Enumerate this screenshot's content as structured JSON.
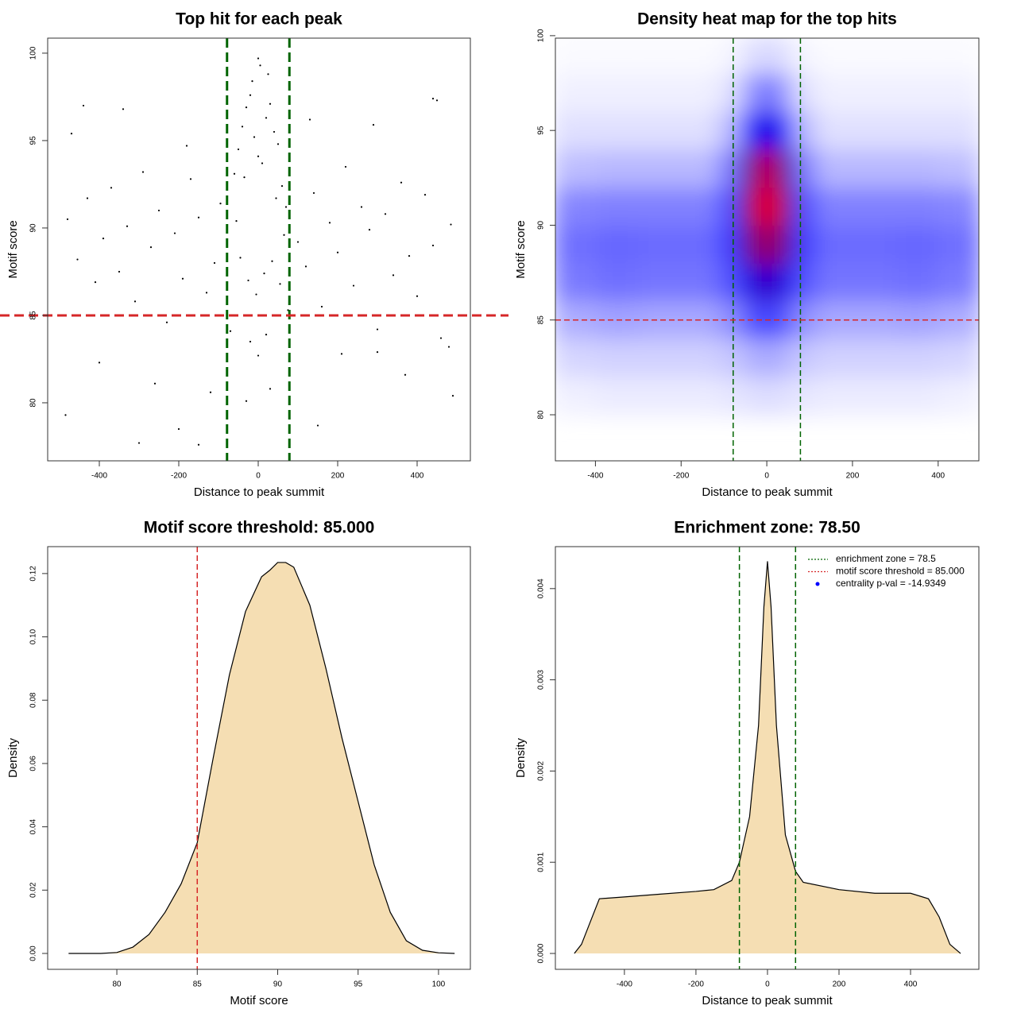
{
  "chart_data": [
    {
      "type": "scatter",
      "title": "Top hit for each peak",
      "x_label": "Distance to peak summit",
      "y_label": "Motif score",
      "xlim": [
        -530,
        534
      ],
      "ylim": [
        76.68,
        100.86
      ],
      "xticks": [
        -400,
        -200,
        0,
        200,
        400
      ],
      "yticks": [
        80,
        85,
        90,
        95,
        100
      ],
      "color": "#000000",
      "x": [
        -480,
        -455,
        -430,
        -410,
        -390,
        -370,
        -350,
        -330,
        -310,
        -290,
        -270,
        -250,
        -230,
        -210,
        -190,
        -170,
        -150,
        -130,
        -110,
        -95,
        100,
        120,
        140,
        160,
        180,
        200,
        220,
        240,
        260,
        280,
        300,
        320,
        340,
        360,
        380,
        400,
        420,
        440,
        460,
        485,
        -470,
        -400,
        -340,
        -260,
        -180,
        -120,
        130,
        210,
        290,
        370,
        450,
        480,
        -60,
        -50,
        -40,
        -30,
        -20,
        -10,
        0,
        10,
        20,
        30,
        40,
        50,
        60,
        70,
        -55,
        -35,
        -15,
        5,
        25,
        45,
        65,
        -45,
        -25,
        -5,
        15,
        35,
        55,
        -70,
        -20,
        0,
        20,
        75,
        -485,
        -300,
        -200,
        300,
        490,
        -440,
        -150,
        150,
        440,
        0,
        -30,
        30
      ],
      "y": [
        90.5,
        88.2,
        91.7,
        86.9,
        89.4,
        92.3,
        87.5,
        90.1,
        85.8,
        93.2,
        88.9,
        91.0,
        84.6,
        89.7,
        87.1,
        92.8,
        90.6,
        86.3,
        88.0,
        91.4,
        89.2,
        87.8,
        92.0,
        85.5,
        90.3,
        88.6,
        93.5,
        86.7,
        91.2,
        89.9,
        84.2,
        90.8,
        87.3,
        92.6,
        88.4,
        86.1,
        91.9,
        89.0,
        83.7,
        90.2,
        95.4,
        82.3,
        96.8,
        81.1,
        94.7,
        80.6,
        96.2,
        82.8,
        95.9,
        81.6,
        97.3,
        83.2,
        93.1,
        94.5,
        95.8,
        96.9,
        97.6,
        95.2,
        94.1,
        93.7,
        96.3,
        97.1,
        95.5,
        94.8,
        92.4,
        91.2,
        90.4,
        92.9,
        98.4,
        99.3,
        98.8,
        91.7,
        89.6,
        88.3,
        87.0,
        86.2,
        87.4,
        88.1,
        86.8,
        84.1,
        83.5,
        82.7,
        83.9,
        85.3,
        79.3,
        77.7,
        78.5,
        82.9,
        80.4,
        97.0,
        77.6,
        78.7,
        97.4,
        99.7,
        80.1,
        80.8
      ],
      "vlines": {
        "values": [
          -78.5,
          78.5
        ],
        "color": "#006400"
      },
      "hlines": {
        "values": [
          85
        ],
        "color": "#d62728"
      }
    },
    {
      "type": "heatmap",
      "title": "Density heat map for the top hits",
      "x_label": "Distance to peak summit",
      "y_label": "Motif score",
      "xlim": [
        -493.5,
        495
      ],
      "ylim": [
        77.57,
        99.87
      ],
      "xticks": [
        -400,
        -200,
        0,
        200,
        400
      ],
      "yticks": [
        80,
        85,
        90,
        95,
        100
      ],
      "x": [
        -450,
        -350,
        -250,
        -150,
        -80,
        -40,
        0,
        40,
        80,
        150,
        250,
        350,
        450
      ],
      "y": [
        81,
        83,
        85,
        87,
        89,
        91,
        93,
        95,
        97,
        99
      ],
      "z": [
        [
          0.03,
          0.04,
          0.04,
          0.04,
          0.05,
          0.06,
          0.07,
          0.06,
          0.05,
          0.04,
          0.04,
          0.04,
          0.03
        ],
        [
          0.08,
          0.09,
          0.09,
          0.09,
          0.11,
          0.15,
          0.17,
          0.15,
          0.11,
          0.09,
          0.09,
          0.09,
          0.08
        ],
        [
          0.16,
          0.18,
          0.17,
          0.17,
          0.22,
          0.33,
          0.38,
          0.33,
          0.22,
          0.17,
          0.17,
          0.18,
          0.16
        ],
        [
          0.26,
          0.28,
          0.27,
          0.27,
          0.34,
          0.55,
          0.62,
          0.55,
          0.34,
          0.27,
          0.27,
          0.28,
          0.26
        ],
        [
          0.28,
          0.3,
          0.29,
          0.29,
          0.38,
          0.72,
          0.82,
          0.72,
          0.38,
          0.29,
          0.29,
          0.3,
          0.28
        ],
        [
          0.24,
          0.25,
          0.25,
          0.25,
          0.35,
          0.8,
          0.98,
          0.8,
          0.35,
          0.25,
          0.25,
          0.25,
          0.24
        ],
        [
          0.13,
          0.14,
          0.14,
          0.14,
          0.26,
          0.7,
          0.9,
          0.7,
          0.26,
          0.14,
          0.14,
          0.14,
          0.13
        ],
        [
          0.06,
          0.06,
          0.06,
          0.06,
          0.14,
          0.45,
          0.55,
          0.45,
          0.14,
          0.06,
          0.06,
          0.06,
          0.06
        ],
        [
          0.03,
          0.03,
          0.03,
          0.03,
          0.06,
          0.2,
          0.28,
          0.2,
          0.06,
          0.03,
          0.03,
          0.03,
          0.03
        ],
        [
          0.01,
          0.01,
          0.01,
          0.01,
          0.02,
          0.06,
          0.08,
          0.06,
          0.02,
          0.01,
          0.01,
          0.01,
          0.01
        ]
      ],
      "colors": [
        "#ffffff",
        "#0000ff",
        "#ff0000"
      ],
      "vlines": {
        "values": [
          -78.5,
          78.5
        ],
        "color": "#006400"
      },
      "hlines": {
        "values": [
          85
        ],
        "color": "#d62728"
      }
    },
    {
      "type": "area",
      "title": "Motif score threshold: 85.000",
      "x_label": "Motif score",
      "y_label": "Density",
      "xlim": [
        75.7,
        101.98
      ],
      "ylim": [
        -0.00502,
        0.1285
      ],
      "xticks": [
        80,
        85,
        90,
        95,
        100
      ],
      "yticks": [
        {
          "value": 0,
          "label": "0.00"
        },
        0.02,
        0.04,
        0.06,
        0.08,
        {
          "value": 0.1,
          "label": "0.10"
        },
        0.12
      ],
      "color": "#f5deb3",
      "x": [
        77,
        79,
        80,
        81,
        82,
        83,
        84,
        85,
        86,
        87,
        88,
        89,
        89.5,
        90,
        90.5,
        91,
        92,
        93,
        94,
        95,
        96,
        97,
        98,
        99,
        100,
        101
      ],
      "values": [
        0,
        0,
        0.0003,
        0.002,
        0.006,
        0.013,
        0.022,
        0.035,
        0.062,
        0.088,
        0.108,
        0.119,
        0.121,
        0.1235,
        0.1235,
        0.122,
        0.11,
        0.09,
        0.068,
        0.048,
        0.028,
        0.013,
        0.004,
        0.001,
        0.0002,
        0
      ],
      "vlines": {
        "values": [
          85
        ],
        "color": "#d62728"
      }
    },
    {
      "type": "area",
      "title": "Enrichment zone: 78.50",
      "x_label": "Distance to peak summit",
      "y_label": "Density",
      "xlim": [
        -593,
        591
      ],
      "ylim": [
        -0.000174,
        0.00446
      ],
      "xticks": [
        -400,
        -200,
        0,
        200,
        400
      ],
      "yticks": [
        {
          "value": 0,
          "label": "0.000"
        },
        0.001,
        0.002,
        0.003,
        0.004
      ],
      "color": "#f5deb3",
      "x": [
        -540,
        -520,
        -500,
        -470,
        -400,
        -300,
        -200,
        -150,
        -100,
        -78.5,
        -50,
        -25,
        -10,
        0,
        10,
        25,
        50,
        78.5,
        100,
        200,
        300,
        400,
        450,
        480,
        510,
        540
      ],
      "values": [
        0,
        0.0001,
        0.0003,
        0.0006,
        0.00062,
        0.00065,
        0.00068,
        0.0007,
        0.0008,
        0.001,
        0.0015,
        0.0025,
        0.0038,
        0.0043,
        0.0038,
        0.0025,
        0.0013,
        0.0009,
        0.00078,
        0.0007,
        0.00066,
        0.00066,
        0.0006,
        0.0004,
        0.0001,
        0
      ],
      "vlines": {
        "values": [
          -78.5,
          78.5
        ],
        "color": "#006400"
      },
      "legend_position": "topright",
      "legend": [
        {
          "label": "enrichment zone = 78.5",
          "color": "#006400",
          "style": "dotted"
        },
        {
          "label": "motif score threshold = 85.000",
          "color": "#d62728",
          "style": "dotted"
        },
        {
          "label": "centrality p-val = -14.9349",
          "color": "#0000ff",
          "style": "point"
        }
      ]
    }
  ]
}
